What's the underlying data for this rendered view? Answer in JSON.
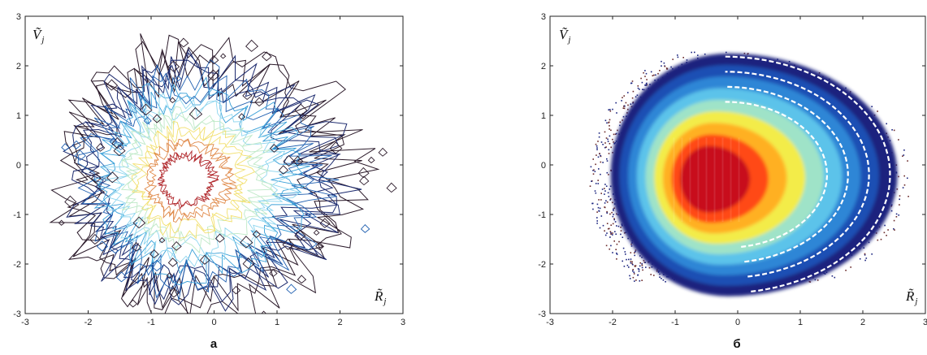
{
  "chart_data": [
    {
      "type": "contour",
      "caption": "а",
      "xlabel": {
        "main": "R̃",
        "sub": "j"
      },
      "ylabel": {
        "main": "Ṽ",
        "sub": "j"
      },
      "xlim": [
        -3,
        3
      ],
      "ylim": [
        -3,
        3
      ],
      "xticks": [
        "-3",
        "-2",
        "-1",
        "0",
        "1",
        "2",
        "3"
      ],
      "yticks": [
        "-3",
        "-2",
        "-1",
        "0",
        "1",
        "2",
        "3"
      ],
      "grid": false,
      "density": {
        "center": [
          -0.5,
          -0.3
        ],
        "x_extent": [
          -1.8,
          2.9
        ],
        "y_extent": [
          -2.3,
          2.8
        ]
      },
      "contour_levels": [
        {
          "level": 1,
          "color": "#2b1a2a"
        },
        {
          "level": 2,
          "color": "#1c2a6e"
        },
        {
          "level": 3,
          "color": "#1f5fb0"
        },
        {
          "level": 4,
          "color": "#3aa0d8"
        },
        {
          "level": 5,
          "color": "#8fd6ef"
        },
        {
          "level": 6,
          "color": "#bfe9c8"
        },
        {
          "level": 7,
          "color": "#f2e070"
        },
        {
          "level": 8,
          "color": "#e08a4a"
        },
        {
          "level": 9,
          "color": "#b0262a"
        }
      ]
    },
    {
      "type": "heatmap",
      "caption": "б",
      "xlabel": {
        "main": "R̃",
        "sub": "j"
      },
      "ylabel": {
        "main": "Ṽ",
        "sub": "j"
      },
      "xlim": [
        -3,
        3
      ],
      "ylim": [
        -3,
        3
      ],
      "xticks": [
        "-3",
        "-2",
        "-1",
        "0",
        "1",
        "2",
        "3"
      ],
      "yticks": [
        "-3",
        "-2",
        "-1",
        "0",
        "1",
        "2",
        "3"
      ],
      "grid": false,
      "density": {
        "center": [
          -0.5,
          -0.3
        ],
        "x_extent": [
          -1.8,
          2.8
        ],
        "y_extent": [
          -2.2,
          2.8
        ]
      },
      "colormap": [
        "#1a237e",
        "#1e50b4",
        "#2f86d6",
        "#5cc3ea",
        "#9fe3c8",
        "#f3ec4a",
        "#ffb020",
        "#ff4a14",
        "#c8101a"
      ]
    }
  ]
}
